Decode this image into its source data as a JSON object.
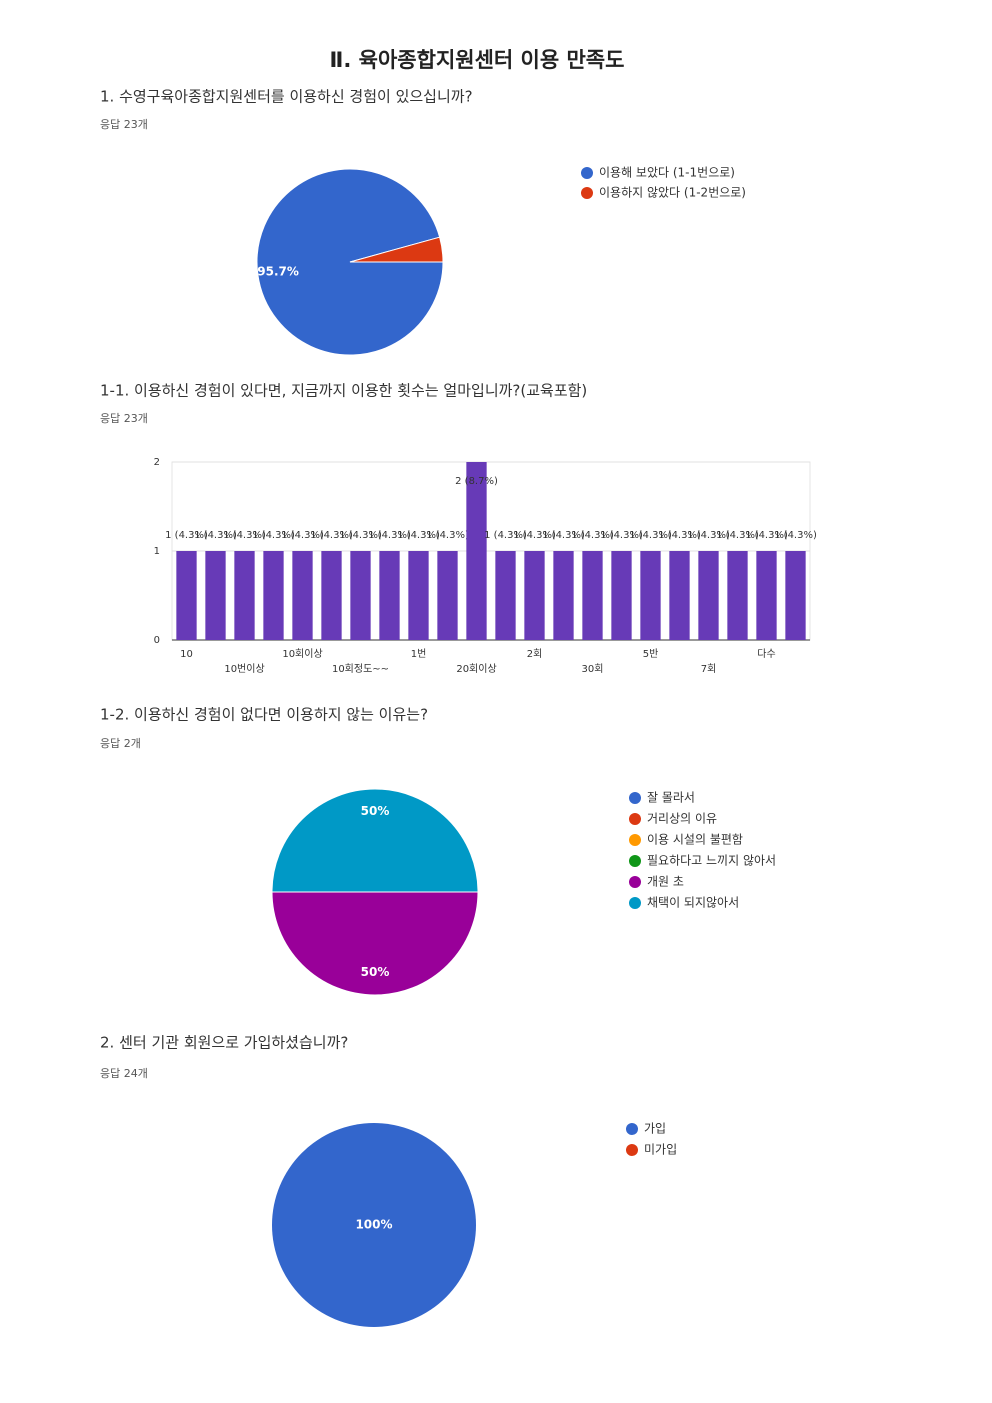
{
  "title": "Ⅱ. 육아종합지원센터 이용 만족도",
  "chart_data": [
    {
      "type": "pie",
      "title": "1. 수영구육아종합지원센터를 이용하신 경험이 있으십니까?",
      "subtitle": "응답 23개",
      "categories": [
        "이용해 보았다 (1-1번으로)",
        "이용하지 않았다 (1-2번으로)"
      ],
      "values": [
        95.7,
        4.3
      ],
      "value_labels": [
        "95.7%",
        null
      ],
      "colors": [
        "#3366cc",
        "#dc3912"
      ]
    },
    {
      "type": "bar",
      "title": "1-1. 이용하신 경험이 있다면, 지금까지 이용한 횟수는 얼마입니까?(교육포함)",
      "subtitle": "응답 23개",
      "categories": [
        "10",
        null,
        "10번이상",
        null,
        "10회이상",
        null,
        "10회정도~~",
        null,
        "1번",
        null,
        "20회이상",
        null,
        "2회",
        null,
        "30회",
        null,
        "5반",
        null,
        "7회",
        null,
        "다수",
        null
      ],
      "values": [
        1,
        1,
        1,
        1,
        1,
        1,
        1,
        1,
        1,
        1,
        2,
        1,
        1,
        1,
        1,
        1,
        1,
        1,
        1,
        1,
        1,
        1
      ],
      "value_labels": [
        "1 (4.3%)",
        "1 (4.3%)",
        "1 (4.3%)",
        "1 (4.3%)",
        "1 (4.3%)",
        "1 (4.3%)",
        "1 (4.3%)",
        "1 (4.3%)",
        "1 (4.3%)",
        "1 (4.3%)",
        "2 (8.7%)",
        "1 (4.3%)",
        "1 (4.3%)",
        "1 (4.3%)",
        "1 (4.3%)",
        "1 (4.3%)",
        "1 (4.3%)",
        "1 (4.3%)",
        "1 (4.3%)",
        "1 (4.3%)",
        "1 (4.3%)",
        "1 (4.3%)"
      ],
      "color": "#673ab7",
      "ylim": [
        0,
        2
      ],
      "yticks": [
        0,
        1,
        2
      ],
      "grid": true
    },
    {
      "type": "pie",
      "title": "1-2. 이용하신 경험이 없다면 이용하지 않는 이유는?",
      "subtitle": "응답 2개",
      "categories": [
        "잘 몰라서",
        "거리상의 이유",
        "이용 시설의 불편함",
        "필요하다고 느끼지 않아서",
        "개원 초",
        "채택이 되지않아서"
      ],
      "values": [
        0,
        0,
        0,
        0,
        50,
        50
      ],
      "value_labels": [
        null,
        null,
        null,
        null,
        "50%",
        "50%"
      ],
      "colors": [
        "#3366cc",
        "#dc3912",
        "#ff9900",
        "#109618",
        "#990099",
        "#0099c6"
      ]
    },
    {
      "type": "pie",
      "title": "2. 센터 기관 회원으로 가입하셨습니까?",
      "subtitle": "응답 24개",
      "categories": [
        "가입",
        "미가입"
      ],
      "values": [
        100,
        0
      ],
      "value_labels": [
        "100%",
        null
      ],
      "colors": [
        "#3366cc",
        "#dc3912"
      ]
    }
  ]
}
